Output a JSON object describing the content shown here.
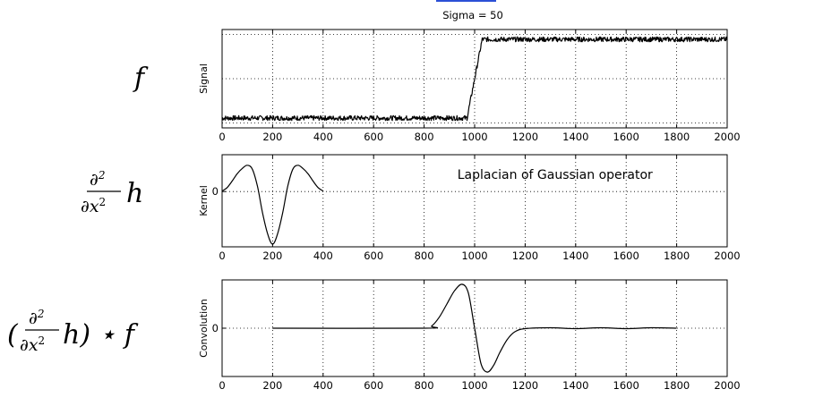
{
  "top_title": "Sigma = 50",
  "row_labels": {
    "f": "f",
    "kernel": "h",
    "conv": "h) ⋆ f"
  },
  "chart_data": [
    {
      "type": "line",
      "title": "Sigma = 50",
      "xlabel": "",
      "ylabel": "Signal",
      "xlim": [
        0,
        2000
      ],
      "xticks": [
        "0",
        "200",
        "400",
        "600",
        "800",
        "1000",
        "1200",
        "1400",
        "1600",
        "1800",
        "2000"
      ],
      "yticks": [],
      "grid": true,
      "series": [
        {
          "x": [
            0,
            200,
            400,
            600,
            800,
            970,
            1000,
            1030,
            1200,
            1400,
            1600,
            1800,
            2000
          ],
          "y": [
            0.1,
            0.1,
            0.1,
            0.1,
            0.1,
            0.1,
            0.5,
            0.9,
            0.9,
            0.9,
            0.9,
            0.9,
            0.9
          ]
        }
      ]
    },
    {
      "type": "line",
      "title": "",
      "annotation": "Laplacian of Gaussian operator",
      "xlabel": "",
      "ylabel": "Kernel",
      "xlim": [
        0,
        2000
      ],
      "xticks": [
        "0",
        "200",
        "400",
        "600",
        "800",
        "1000",
        "1200",
        "1400",
        "1600",
        "1800",
        "2000"
      ],
      "yticks": [
        "0"
      ],
      "grid": true,
      "series": [
        {
          "x": [
            0,
            20,
            40,
            60,
            80,
            100,
            120,
            140,
            160,
            180,
            200,
            220,
            240,
            260,
            280,
            300,
            320,
            340,
            360,
            380,
            400
          ],
          "y": [
            0.02,
            0.15,
            0.4,
            0.68,
            0.88,
            1.0,
            0.85,
            0.2,
            -0.8,
            -1.6,
            -2.0,
            -1.6,
            -0.8,
            0.2,
            0.85,
            1.0,
            0.88,
            0.68,
            0.4,
            0.15,
            0.02
          ]
        }
      ]
    },
    {
      "type": "line",
      "title": "",
      "xlabel": "",
      "ylabel": "Convolution",
      "xlim": [
        0,
        2000
      ],
      "xticks": [
        "0",
        "200",
        "400",
        "600",
        "800",
        "1000",
        "1200",
        "1400",
        "1600",
        "1800",
        "2000"
      ],
      "yticks": [
        "0"
      ],
      "grid": true,
      "series": [
        {
          "x": [
            200,
            800,
            830,
            860,
            890,
            920,
            950,
            975,
            1000,
            1025,
            1050,
            1075,
            1100,
            1130,
            1160,
            1200,
            1300,
            1400,
            1500,
            1600,
            1700,
            1800
          ],
          "y": [
            0,
            0,
            0.05,
            0.25,
            0.55,
            0.85,
            1.0,
            0.8,
            0.0,
            -0.8,
            -1.0,
            -0.85,
            -0.55,
            -0.25,
            -0.08,
            -0.01,
            0.01,
            -0.01,
            0.01,
            -0.01,
            0.01,
            0
          ]
        }
      ]
    }
  ]
}
